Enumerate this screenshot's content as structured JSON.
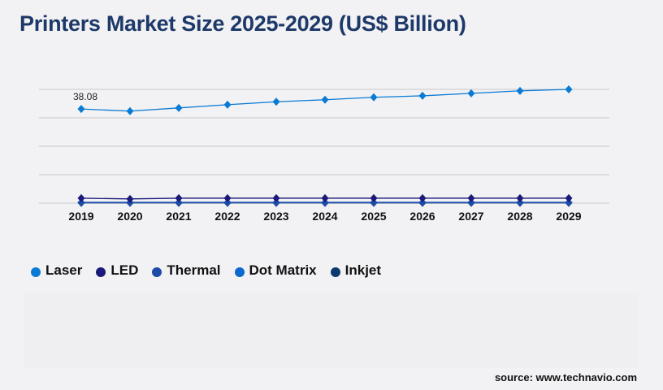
{
  "title": "Printers Market Size 2025-2029 (US$ Billion)",
  "source": "source: www.technavio.com",
  "chart_data": {
    "type": "line",
    "title": "Printers Market Size 2025-2029 (US$ Billion)",
    "categories": [
      "2019",
      "2020",
      "2021",
      "2022",
      "2023",
      "2024",
      "2025",
      "2026",
      "2027",
      "2028",
      "2029"
    ],
    "ylim": [
      0,
      46
    ],
    "grid": true,
    "legend": "bottom-left",
    "series": [
      {
        "name": "Laser",
        "color": "#0a7bd4",
        "values": [
          38.08,
          37.2,
          38.5,
          39.8,
          41.0,
          41.8,
          42.8,
          43.4,
          44.4,
          45.4,
          46.0
        ],
        "data_labels": {
          "0": "38.08"
        }
      },
      {
        "name": "LED",
        "color": "#1b1a7a",
        "values": [
          2.0,
          1.7,
          2.0,
          2.0,
          2.0,
          2.0,
          2.0,
          2.0,
          2.0,
          2.0,
          2.0
        ]
      },
      {
        "name": "Thermal",
        "color": "#1e4aa8",
        "values": [
          0.3,
          0.3,
          0.3,
          0.3,
          0.3,
          0.3,
          0.3,
          0.3,
          0.3,
          0.3,
          0.3
        ]
      },
      {
        "name": "Dot Matrix",
        "color": "#0b68cc",
        "values": [
          0.2,
          0.2,
          0.2,
          0.2,
          0.2,
          0.2,
          0.2,
          0.2,
          0.2,
          0.2,
          0.2
        ]
      },
      {
        "name": "Inkjet",
        "color": "#0d3a6e",
        "values": [
          0.1,
          0.1,
          0.1,
          0.1,
          0.1,
          0.1,
          0.1,
          0.1,
          0.1,
          0.1,
          0.1
        ]
      }
    ]
  }
}
